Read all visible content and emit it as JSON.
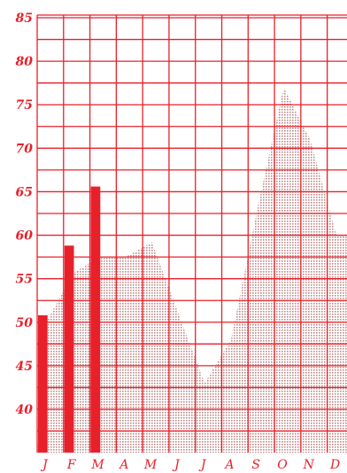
{
  "chart_data": {
    "type": "bar",
    "title": "",
    "xlabel": "",
    "ylabel": "",
    "ylim": [
      35,
      85
    ],
    "grid": true,
    "colors": {
      "grid": "#e8202a",
      "bars": "#e8202a",
      "area": "#d8a8a8",
      "text": "#e8202a"
    },
    "y_ticks": [
      "85",
      "80",
      "75",
      "70",
      "65",
      "60",
      "55",
      "50",
      "45",
      "40"
    ],
    "categories": [
      "J",
      "F",
      "M",
      "A",
      "M",
      "J",
      "J",
      "A",
      "S",
      "O",
      "N",
      "D"
    ],
    "series": [
      {
        "kind": "bar",
        "values": [
          50.8,
          58.8,
          65.6,
          null,
          null,
          null,
          null,
          null,
          null,
          null,
          null,
          null
        ]
      },
      {
        "kind": "area",
        "values": [
          50,
          55.6,
          57.5,
          57.5,
          59.2,
          51,
          43,
          48,
          63,
          77,
          71,
          60
        ]
      }
    ]
  }
}
